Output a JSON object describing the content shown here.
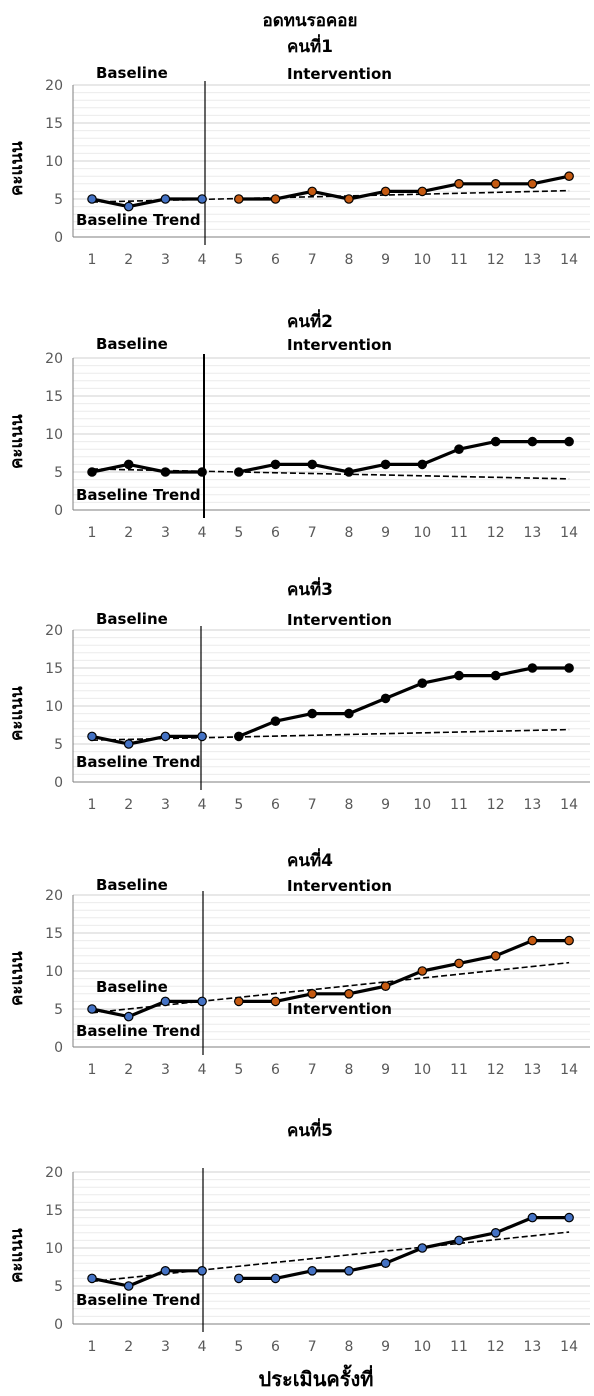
{
  "figure_title": "อดทนรอคอย",
  "x_axis_label": "ประเมินครั้งที่",
  "chart_data": [
    {
      "type": "line",
      "title": "คนที่1",
      "ylabel": "คะแนน",
      "xlabel": "",
      "x": [
        1,
        2,
        3,
        4,
        5,
        6,
        7,
        8,
        9,
        10,
        11,
        12,
        13,
        14
      ],
      "ylim": [
        0,
        20
      ],
      "yticks": [
        0,
        5,
        10,
        15,
        20
      ],
      "phase_labels": [
        "Baseline",
        "Intervention"
      ],
      "phase_change_after": 4,
      "trend_label": "Baseline Trend",
      "series": [
        {
          "x": [
            1,
            2,
            3,
            4
          ],
          "values": [
            5,
            4,
            5,
            5
          ],
          "marker_color": "#4472c4"
        },
        {
          "x": [
            5,
            6,
            7,
            8,
            9,
            10,
            11,
            12,
            13,
            14
          ],
          "values": [
            5,
            5,
            6,
            5,
            6,
            6,
            7,
            7,
            7,
            8
          ],
          "marker_color": "#c55a11"
        }
      ],
      "trend_line": {
        "x": [
          1,
          14
        ],
        "values": [
          4.6,
          6.1
        ]
      },
      "grid": true
    },
    {
      "type": "line",
      "title": "คนที่2",
      "ylabel": "คะแนน",
      "xlabel": "",
      "x": [
        1,
        2,
        3,
        4,
        5,
        6,
        7,
        8,
        9,
        10,
        11,
        12,
        13,
        14
      ],
      "ylim": [
        0,
        20
      ],
      "yticks": [
        0,
        5,
        10,
        15,
        20
      ],
      "phase_labels": [
        "Baseline",
        "Intervention"
      ],
      "phase_change_after": 4,
      "trend_label": "Baseline Trend",
      "series": [
        {
          "x": [
            1,
            2,
            3,
            4
          ],
          "values": [
            5,
            6,
            5,
            5
          ],
          "marker_color": "#000000"
        },
        {
          "x": [
            5,
            6,
            7,
            8,
            9,
            10,
            11,
            12,
            13,
            14
          ],
          "values": [
            5,
            6,
            6,
            5,
            6,
            6,
            8,
            9,
            9,
            9
          ],
          "marker_color": "#000000"
        }
      ],
      "trend_line": {
        "x": [
          1,
          14
        ],
        "values": [
          5.4,
          4.1
        ]
      },
      "grid": true
    },
    {
      "type": "line",
      "title": "คนที่3",
      "ylabel": "คะแนน",
      "xlabel": "",
      "x": [
        1,
        2,
        3,
        4,
        5,
        6,
        7,
        8,
        9,
        10,
        11,
        12,
        13,
        14
      ],
      "ylim": [
        0,
        20
      ],
      "yticks": [
        0,
        5,
        10,
        15,
        20
      ],
      "phase_labels": [
        "Baseline",
        "Intervention"
      ],
      "phase_change_after": 4,
      "trend_label": "Baseline Trend",
      "series": [
        {
          "x": [
            1,
            2,
            3,
            4
          ],
          "values": [
            6,
            5,
            6,
            6
          ],
          "marker_color": "#4472c4"
        },
        {
          "x": [
            5,
            6,
            7,
            8,
            9,
            10,
            11,
            12,
            13,
            14
          ],
          "values": [
            6,
            8,
            9,
            9,
            11,
            13,
            14,
            14,
            15,
            15
          ],
          "marker_color": "#000000"
        }
      ],
      "trend_line": {
        "x": [
          1,
          14
        ],
        "values": [
          5.5,
          6.9
        ]
      },
      "grid": true
    },
    {
      "type": "line",
      "title": "คนที่4",
      "ylabel": "คะแนน",
      "xlabel": "",
      "x": [
        1,
        2,
        3,
        4,
        5,
        6,
        7,
        8,
        9,
        10,
        11,
        12,
        13,
        14
      ],
      "ylim": [
        0,
        20
      ],
      "yticks": [
        0,
        5,
        10,
        15,
        20
      ],
      "phase_labels": [
        "Baseline",
        "Intervention"
      ],
      "phase_change_after": 4,
      "trend_label": "Baseline Trend",
      "series": [
        {
          "x": [
            1,
            2,
            3,
            4
          ],
          "values": [
            5,
            4,
            6,
            6
          ],
          "marker_color": "#4472c4"
        },
        {
          "x": [
            5,
            6,
            7,
            8,
            9,
            10,
            11,
            12,
            13,
            14
          ],
          "values": [
            6,
            6,
            7,
            7,
            8,
            10,
            11,
            12,
            14,
            14
          ],
          "marker_color": "#c55a11"
        }
      ],
      "trend_line": {
        "x": [
          1,
          14
        ],
        "values": [
          4.5,
          11.1
        ]
      },
      "grid": true
    },
    {
      "type": "line",
      "title": "คนที่5",
      "ylabel": "คะแนน",
      "xlabel": "",
      "x": [
        1,
        2,
        3,
        4,
        5,
        6,
        7,
        8,
        9,
        10,
        11,
        12,
        13,
        14
      ],
      "ylim": [
        0,
        20
      ],
      "yticks": [
        0,
        5,
        10,
        15,
        20
      ],
      "phase_labels": [
        "Baseline",
        "Intervention"
      ],
      "phase_change_after": 4,
      "trend_label": "Baseline Trend",
      "series": [
        {
          "x": [
            1,
            2,
            3,
            4
          ],
          "values": [
            6,
            5,
            7,
            7
          ],
          "marker_color": "#4472c4"
        },
        {
          "x": [
            5,
            6,
            7,
            8,
            9,
            10,
            11,
            12,
            13,
            14
          ],
          "values": [
            6,
            6,
            7,
            7,
            8,
            10,
            11,
            12,
            14,
            14
          ],
          "marker_color": "#4472c4"
        }
      ],
      "trend_line": {
        "x": [
          1,
          14
        ],
        "values": [
          5.6,
          12.1
        ]
      },
      "grid": true
    }
  ]
}
